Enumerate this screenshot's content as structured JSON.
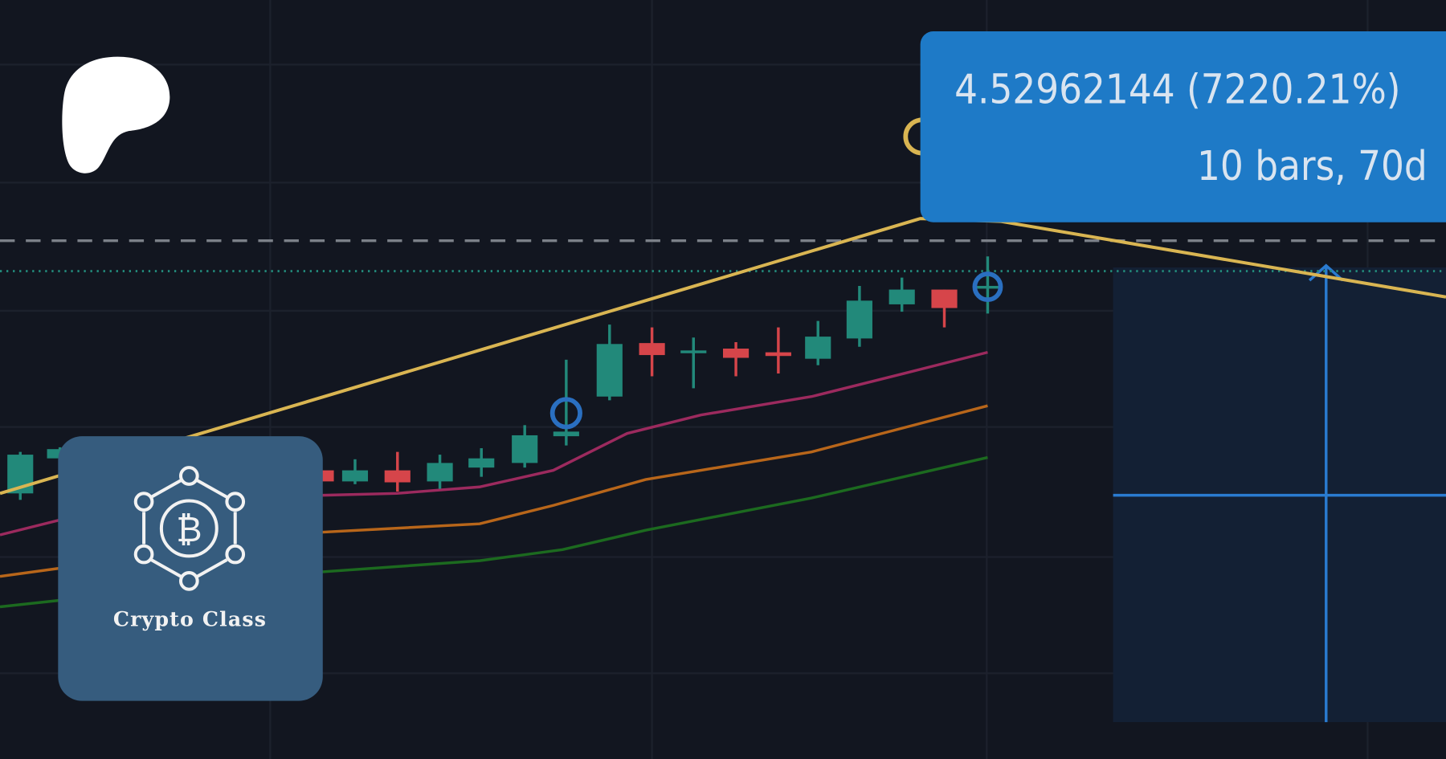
{
  "colors": {
    "background": "#121620",
    "grid": "#1c212c",
    "up": "#22897a",
    "down": "#d6454a",
    "trend_line": "#d9b552",
    "ma_fast": "#9c2a5e",
    "ma_mid": "#b8661a",
    "ma_slow": "#1c6a1f",
    "price_dashed": "#7b8088",
    "price_dotted": "#22897a",
    "tooltip_bg": "#1e7ac7",
    "measure_zone": "#132034",
    "measure_line": "#2a7bd0",
    "logo_bg": "#365c7e"
  },
  "tooltip": {
    "change": "4.52962144 (7220.21%)",
    "range": "10 bars, 70d"
  },
  "branding": {
    "patreon_icon": "patreon-icon",
    "logo_icon": "bitcoin-network-icon",
    "logo_text": "Crypto Class"
  }
}
